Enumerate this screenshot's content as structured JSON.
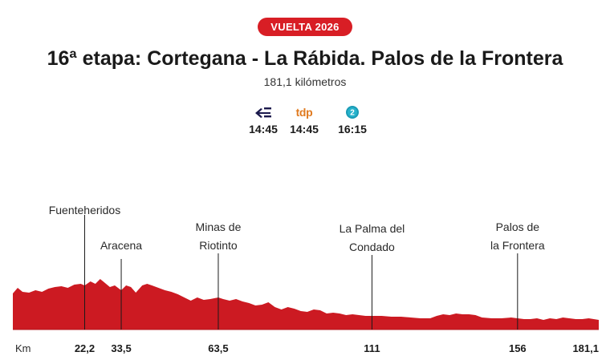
{
  "header": {
    "badge": "VUELTA 2026",
    "title": "16ª etapa: Cortegana - La Rábida. Palos de la Frontera",
    "subtitle": "181,1 kilómetros"
  },
  "broadcasters": [
    {
      "logo_icon": "eurosport-icon",
      "time": "14:45"
    },
    {
      "logo_text": "tdp",
      "time": "14:45"
    },
    {
      "logo_icon": "tve2-icon",
      "logo_text": "2",
      "time": "16:15"
    }
  ],
  "colors": {
    "accent": "#d81e25",
    "profile_fill": "#cc1a22",
    "text": "#1a1a1a",
    "tdp": "#e07a1f",
    "tve2": "#1a9bb5",
    "eurosport": "#1c1a4d"
  },
  "profile": {
    "distance_unit": "Km",
    "total_km": 181.1,
    "towns": [
      {
        "name_lines": [
          "Fuenteheridos"
        ],
        "km": 22.2,
        "km_label": "22,2"
      },
      {
        "name_lines": [
          "Aracena"
        ],
        "km": 33.5,
        "km_label": "33,5"
      },
      {
        "name_lines": [
          "Minas de",
          "Riotinto"
        ],
        "km": 63.5,
        "km_label": "63,5"
      },
      {
        "name_lines": [
          "La Palma del",
          "Condado"
        ],
        "km": 111,
        "km_label": "111"
      },
      {
        "name_lines": [
          "Palos de",
          "la Frontera"
        ],
        "km": 156,
        "km_label": "156"
      }
    ],
    "finish_label": "181,1",
    "elevation": [
      [
        0,
        45
      ],
      [
        1.5,
        52
      ],
      [
        3,
        47
      ],
      [
        5,
        46
      ],
      [
        7,
        49
      ],
      [
        9,
        47
      ],
      [
        11,
        51
      ],
      [
        13,
        53
      ],
      [
        15,
        54
      ],
      [
        17,
        52
      ],
      [
        19,
        56
      ],
      [
        21,
        57
      ],
      [
        22.2,
        55
      ],
      [
        24,
        60
      ],
      [
        25.5,
        57
      ],
      [
        27,
        63
      ],
      [
        28.5,
        58
      ],
      [
        30,
        53
      ],
      [
        31.5,
        55
      ],
      [
        33.5,
        49
      ],
      [
        35,
        55
      ],
      [
        36.5,
        53
      ],
      [
        38,
        46
      ],
      [
        40,
        55
      ],
      [
        41.5,
        57
      ],
      [
        43,
        55
      ],
      [
        45,
        52
      ],
      [
        47,
        49
      ],
      [
        49,
        47
      ],
      [
        51,
        44
      ],
      [
        53,
        40
      ],
      [
        55,
        36
      ],
      [
        57,
        40
      ],
      [
        59,
        37
      ],
      [
        61,
        38
      ],
      [
        63.5,
        40
      ],
      [
        65,
        38
      ],
      [
        67,
        36
      ],
      [
        69,
        38
      ],
      [
        71,
        35
      ],
      [
        73,
        33
      ],
      [
        75,
        30
      ],
      [
        77,
        31
      ],
      [
        79,
        34
      ],
      [
        81,
        28
      ],
      [
        83,
        25
      ],
      [
        85,
        28
      ],
      [
        87,
        26
      ],
      [
        89,
        23
      ],
      [
        91,
        22
      ],
      [
        93,
        25
      ],
      [
        95,
        24
      ],
      [
        97,
        20
      ],
      [
        99,
        21
      ],
      [
        101,
        20
      ],
      [
        103,
        18
      ],
      [
        105,
        19
      ],
      [
        107,
        18
      ],
      [
        109,
        17
      ],
      [
        111,
        17
      ],
      [
        114,
        17
      ],
      [
        117,
        16
      ],
      [
        120,
        16
      ],
      [
        123,
        15
      ],
      [
        126,
        14
      ],
      [
        129,
        14
      ],
      [
        131,
        17
      ],
      [
        133,
        19
      ],
      [
        135,
        18
      ],
      [
        137,
        20
      ],
      [
        139,
        19
      ],
      [
        141,
        19
      ],
      [
        143,
        18
      ],
      [
        145,
        15
      ],
      [
        148,
        14
      ],
      [
        151,
        14
      ],
      [
        154,
        15
      ],
      [
        156,
        14
      ],
      [
        158,
        13
      ],
      [
        160,
        13
      ],
      [
        162,
        14
      ],
      [
        164,
        12
      ],
      [
        166,
        14
      ],
      [
        168,
        13
      ],
      [
        170,
        15
      ],
      [
        172,
        14
      ],
      [
        174,
        13
      ],
      [
        176,
        13
      ],
      [
        178,
        14
      ],
      [
        181.1,
        12
      ]
    ]
  }
}
